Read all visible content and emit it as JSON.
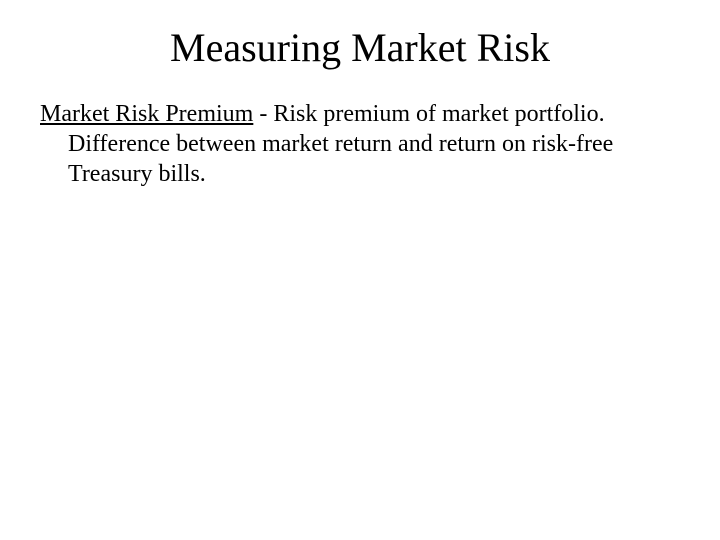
{
  "slide": {
    "title": "Measuring Market Risk",
    "term": "Market Risk Premium",
    "definition_rest": " - Risk premium of market portfolio.  Difference between market return and return on risk-free Treasury bills.",
    "title_fontsize": 40,
    "body_fontsize": 24,
    "background_color": "#ffffff",
    "text_color": "#000000",
    "font_family": "Times New Roman"
  }
}
